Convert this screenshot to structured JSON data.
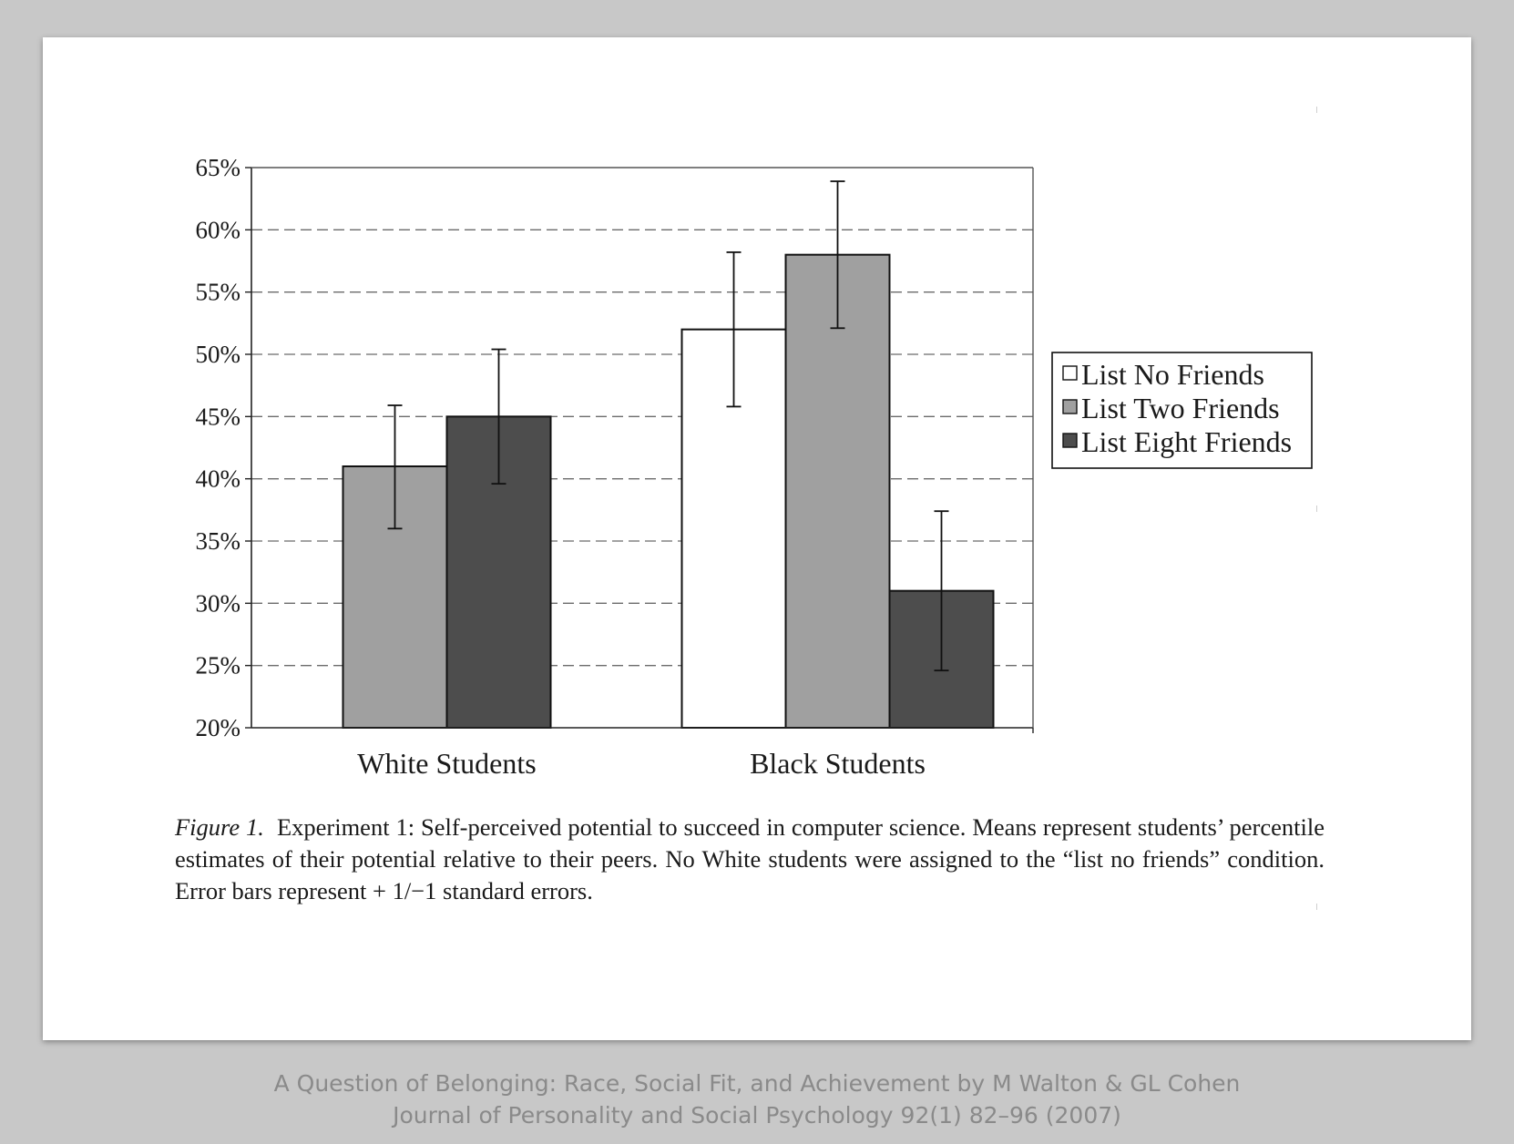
{
  "chart_data": {
    "type": "bar",
    "categories": [
      "White Students",
      "Black Students"
    ],
    "series": [
      {
        "name": "List No Friends",
        "color": "#ffffff",
        "values": [
          null,
          52
        ],
        "error_low": [
          null,
          45.8
        ],
        "error_high": [
          null,
          58.2
        ]
      },
      {
        "name": "List Two Friends",
        "color": "#a0a0a0",
        "values": [
          41,
          58
        ],
        "error_low": [
          36,
          52.1
        ],
        "error_high": [
          45.9,
          63.9
        ]
      },
      {
        "name": "List Eight Friends",
        "color": "#4d4d4d",
        "values": [
          45,
          31
        ],
        "error_low": [
          39.6,
          24.6
        ],
        "error_high": [
          50.4,
          37.4
        ]
      }
    ],
    "ylim": [
      20,
      65
    ],
    "yticks": [
      "20%",
      "25%",
      "30%",
      "35%",
      "40%",
      "45%",
      "50%",
      "55%",
      "60%",
      "65%"
    ],
    "grid": "horizontal dashed",
    "legend_position": "right",
    "title": "",
    "xlabel": "",
    "ylabel": ""
  },
  "caption": {
    "label": "Figure 1.",
    "text": "Experiment 1: Self-perceived potential to succeed in computer science. Means represent students’ percentile estimates of their potential relative to their peers. No White students were assigned to the “list no friends” condition. Error bars represent + 1/−1 standard errors."
  },
  "source": {
    "line1": "A Question of Belonging: Race, Social Fit, and Achievement by M Walton & GL Cohen",
    "line2": "Journal of Personality and Social Psychology 92(1) 82–96 (2007)"
  }
}
